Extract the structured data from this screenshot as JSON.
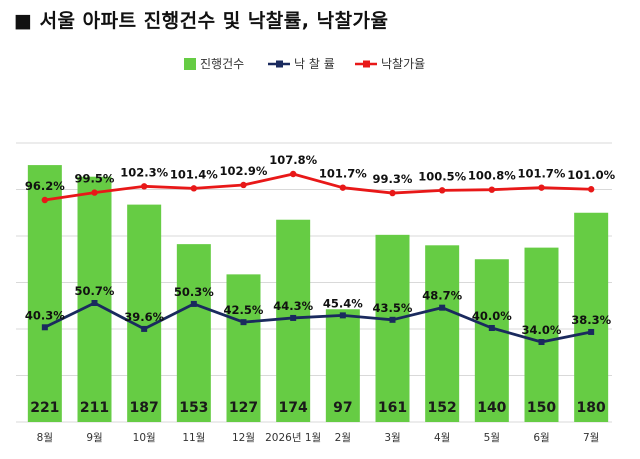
{
  "title": "■ 서울 아파트 진행건수 및 낙찰률, 낙찰가율",
  "chart_data": {
    "type": "bar+line",
    "title": "■ 서울 아파트 진행건수 및 낙찰률, 낙찰가율",
    "categories": [
      "8월",
      "9월",
      "10월",
      "11월",
      "12월",
      "2026년 1월",
      "2월",
      "3월",
      "4월",
      "5월",
      "6월",
      "7월"
    ],
    "legend_position": "top-center",
    "grid": true,
    "series": [
      {
        "name": "진행건수",
        "type": "bar",
        "color": "#66cc44",
        "values": [
          221,
          211,
          187,
          153,
          127,
          174,
          97,
          161,
          152,
          140,
          150,
          180
        ],
        "labels": [
          "221",
          "211",
          "187",
          "153",
          "127",
          "174",
          "97",
          "161",
          "152",
          "140",
          "150",
          "180"
        ]
      },
      {
        "name": "낙 찰 률",
        "type": "line",
        "color": "#1a2a5e",
        "values": [
          40.3,
          50.7,
          39.6,
          50.3,
          42.5,
          44.3,
          45.4,
          43.5,
          48.7,
          40.0,
          34.0,
          38.3
        ],
        "labels": [
          "40.3%",
          "50.7%",
          "39.6%",
          "50.3%",
          "42.5%",
          "44.3%",
          "45.4%",
          "43.5%",
          "48.7%",
          "40.0%",
          "34.0%",
          "38.3%"
        ]
      },
      {
        "name": "낙찰가율",
        "type": "line",
        "color": "#e81818",
        "values": [
          96.2,
          99.5,
          102.3,
          101.4,
          102.9,
          107.8,
          101.7,
          99.3,
          100.5,
          100.8,
          101.7,
          101.0
        ],
        "labels": [
          "96.2%",
          "99.5%",
          "102.3%",
          "101.4%",
          "102.9%",
          "107.8%",
          "101.7%",
          "99.3%",
          "100.5%",
          "100.8%",
          "101.7%",
          "101.0%"
        ]
      }
    ]
  }
}
